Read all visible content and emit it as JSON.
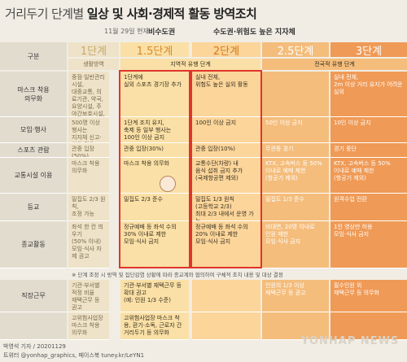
{
  "title": {
    "light": "거리두기 단계별 ",
    "bold": "일상 및 사회·경제적 활동 방역조치"
  },
  "header": {
    "date": "11월 29일 현재",
    "region1": "비수도권",
    "region2": "수도권·위험도 높은 지자체"
  },
  "stages": [
    "1단계",
    "1.5단계",
    "2단계",
    "2.5단계",
    "3단계"
  ],
  "bands": {
    "gubun": "구분",
    "life": "생활방역",
    "regional": "지역적 유행 단계",
    "national": "전국적 유행 단계"
  },
  "rows": [
    {
      "label": "마스크 착용\n의무화",
      "c1": "중점·일반관리시설,\n대중교통, 의료기관, 약국,\n요양시설, 주야간보호시설,\n집회·시위장, 실내 스포츠\n경기장, 고위험 사업장 등",
      "c15": "1단계에\n실외 스포츠 경기장 추가",
      "c2": "실내 전체,\n위험도 높은 실외 활동",
      "c25": "",
      "c3": "실내 전체,\n2m 이상 거리 유지가 어려운 실외"
    },
    {
      "label": "모임·행사",
      "c1": "500명 이상 행사는\n지자체 신고·협의 필요,\n방역수칙 의무화",
      "c15": "1단계 조치 유지,\n축제 등 일부 행사는\n100인 이상 금지",
      "c2": "100인 이상 금지",
      "c25": "50인 이상 금지",
      "c3": "10인 이상 금지"
    },
    {
      "label": "스포츠 관람",
      "c1": "관중 입장(50%)",
      "c15": "관중 입장(30%)",
      "c2": "관중 입장(10%)",
      "c25": "무관중 경기",
      "c3": "경기 중단"
    },
    {
      "label": "교통시설 이용",
      "c1": "마스크 착용 의무화",
      "c15": "마스크 착용 의무화",
      "c2": "교통수단(차량) 내\n음식 섭취 금지 추가\n(국제항공편 제외)",
      "c25": "KTX, 고속버스 등 50%\n이내로 예매 제한\n(항공기 제외)",
      "c3": "KTX, 고속버스 등 50%\n이내로 예매 제한\n(항공기 제외)"
    },
    {
      "label": "등교",
      "c1": "밀집도 2/3 원칙,\n조정 가능",
      "c15": "밀집도 2/3 준수",
      "c2": "밀집도 1/3 원칙\n(고등학교 2/3)\n최대 2/3 내에서 운영 가능",
      "c25": "밀집도 1/3 준수",
      "c3": "원격수업 전환"
    },
    {
      "label": "종교활동",
      "c1": "좌석 한 칸 띄우기\n(50% 이내)\n모임·식사 자제 권고",
      "c15": "정규예배 등 좌석 수의\n30% 이내로 제한\n모임·식사 금지",
      "c2": "정규예배 등 좌석 수의\n20% 이내로 제한\n모임·식사 금지",
      "c25": "비대면, 20명 이내로\n인원 제한\n모임·식사 금지",
      "c3": "1인 영상만 허용\n모임·식사 금지"
    },
    {
      "label": "직장근무",
      "c1": "기관·부서별 적정 비율\n재택근무 등 권고\n(예: 인원 1/5 수준)",
      "c15": "기관·부서별 재택근무 등 확대 권고\n(예: 인원 1/3 수준)",
      "c2": "",
      "c25": "인원의 1/3 이상\n재택근무 등 권고",
      "c3": "필수인원 외\n재택근무 등 의무화"
    },
    {
      "label": "",
      "c1": "고위험사업장\n마스크 착용 의무화",
      "c15": "고위험사업장 마스크 착용, 환기·소독, 근로자 간 거리두기 등 의무화",
      "c2": "",
      "c25": "",
      "c3": ""
    }
  ],
  "note": "※ 단계 조정 시 방역 및 집단감염 상황에 따라 종교계와 협의하여 구체적 조치 내용 및 대상 결정",
  "credit": {
    "author": "박영석 기자",
    "date": "20201129",
    "social": "트위터 @yonhap_graphics, 페이스북 tuney.kr/LeYN1"
  },
  "logo": "YONHAP NEWS",
  "colors": {
    "accent_red": "#e0352b",
    "stage1": "#eee2c8",
    "stage15": "#fae0a6",
    "stage2": "#fbd59a",
    "stage25": "#f4bd7c",
    "stage3": "#ef9a56"
  }
}
